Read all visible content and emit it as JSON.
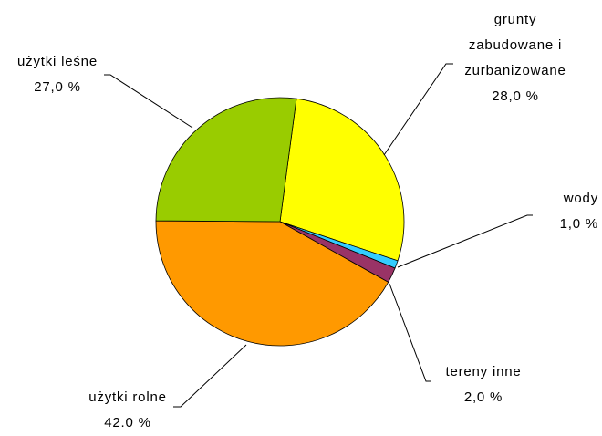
{
  "chart_data": {
    "type": "pie",
    "categories": [
      "grunty zabudowane i zurbanizowane",
      "wody",
      "tereny inne",
      "użytki rolne",
      "użytki leśne"
    ],
    "values": [
      28,
      1,
      2,
      42,
      27
    ],
    "value_labels": [
      "28,0 %",
      "1,0 %",
      "2,0 %",
      "42.0 %",
      "27,0 %"
    ],
    "colors": [
      "#ffff00",
      "#33ccff",
      "#993366",
      "#ff9900",
      "#99cc00"
    ]
  }
}
